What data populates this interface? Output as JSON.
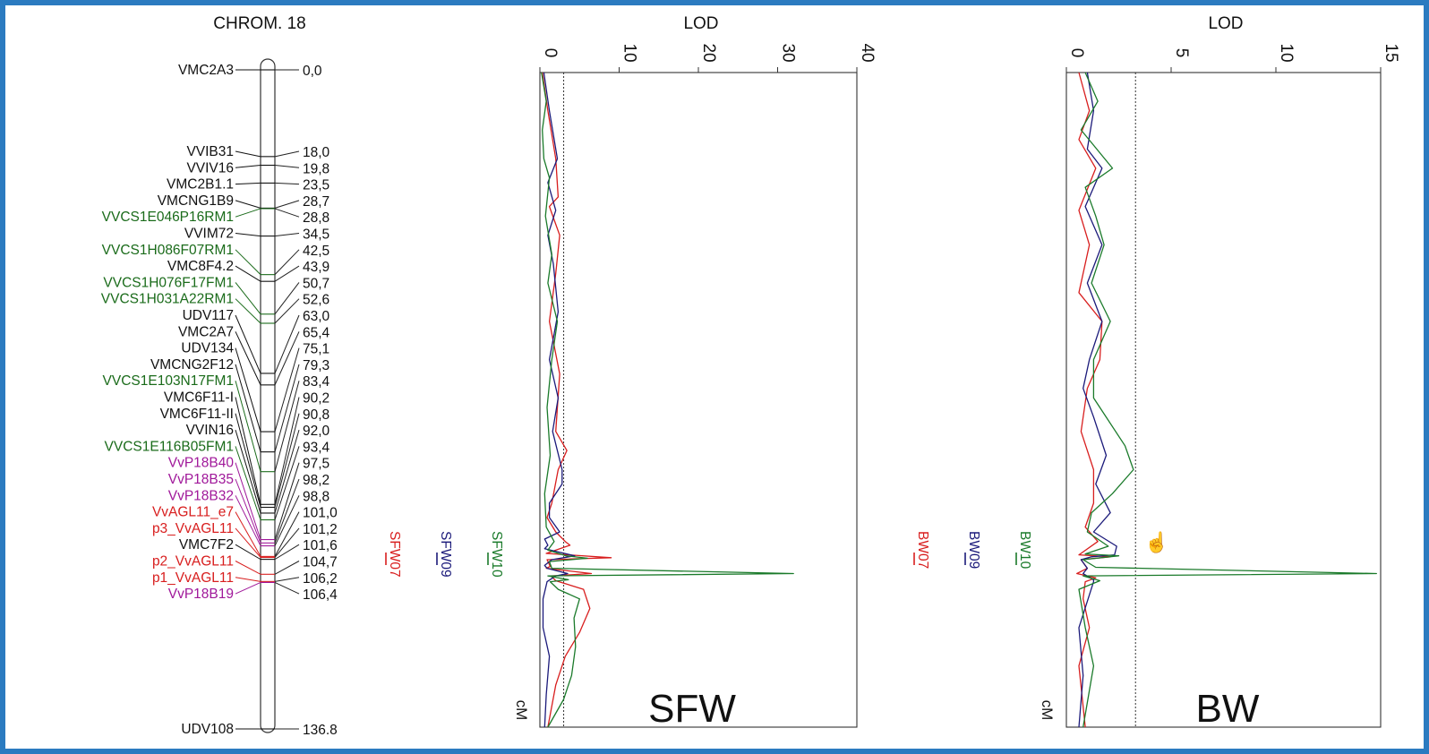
{
  "chart_data": [
    {
      "type": "diagram",
      "title": "CHROM. 18",
      "markers": [
        {
          "name": "VMC2A3",
          "cm": "0,0",
          "color": "#111111"
        },
        {
          "name": "VVIB31",
          "cm": "18,0",
          "color": "#111111"
        },
        {
          "name": "VVIV16",
          "cm": "19,8",
          "color": "#111111"
        },
        {
          "name": "VMC2B1.1",
          "cm": "23,5",
          "color": "#111111"
        },
        {
          "name": "VMCNG1B9",
          "cm": "28,7",
          "color": "#111111"
        },
        {
          "name": "VVCS1E046P16RM1",
          "cm": "28,8",
          "color": "#1a6b1a"
        },
        {
          "name": "VVIM72",
          "cm": "34,5",
          "color": "#111111"
        },
        {
          "name": "VVCS1H086F07RM1",
          "cm": "42,5",
          "color": "#1a6b1a"
        },
        {
          "name": "VMC8F4.2",
          "cm": "43,9",
          "color": "#111111"
        },
        {
          "name": "VVCS1H076F17FM1",
          "cm": "50,7",
          "color": "#1a6b1a"
        },
        {
          "name": "VVCS1H031A22RM1",
          "cm": "52,6",
          "color": "#1a6b1a"
        },
        {
          "name": "UDV117",
          "cm": "63,0",
          "color": "#111111"
        },
        {
          "name": "VMC2A7",
          "cm": "65,4",
          "color": "#111111"
        },
        {
          "name": "UDV134",
          "cm": "75,1",
          "color": "#111111"
        },
        {
          "name": "VMCNG2F12",
          "cm": "79,3",
          "color": "#111111"
        },
        {
          "name": "VVCS1E103N17FM1",
          "cm": "83,4",
          "color": "#1a6b1a"
        },
        {
          "name": "VMC6F11-I",
          "cm": "90,2",
          "color": "#111111"
        },
        {
          "name": "VMC6F11-II",
          "cm": "90,8",
          "color": "#111111"
        },
        {
          "name": "VVIN16",
          "cm": "92,0",
          "color": "#111111"
        },
        {
          "name": "VVCS1E116B05FM1",
          "cm": "93,4",
          "color": "#1a6b1a"
        },
        {
          "name": "VvP18B40",
          "cm": "97,5",
          "color": "#a0189a"
        },
        {
          "name": "VvP18B35",
          "cm": "98,2",
          "color": "#a0189a"
        },
        {
          "name": "VvP18B32",
          "cm": "98,8",
          "color": "#a0189a"
        },
        {
          "name": "VvAGL11_e7",
          "cm": "101,0",
          "color": "#d81e1e"
        },
        {
          "name": "p3_VvAGL11",
          "cm": "101,2",
          "color": "#d81e1e"
        },
        {
          "name": "VMC7F2",
          "cm": "101,6",
          "color": "#111111"
        },
        {
          "name": "p2_VvAGL11",
          "cm": "104,7",
          "color": "#d81e1e"
        },
        {
          "name": "p1_VvAGL11",
          "cm": "106,2",
          "color": "#d81e1e"
        },
        {
          "name": "VvP18B19",
          "cm": "106,4",
          "color": "#a0189a"
        },
        {
          "name": "UDV108",
          "cm": "136.8",
          "color": "#111111"
        }
      ]
    },
    {
      "type": "line",
      "title": "SFW",
      "xlabel": "LOD",
      "ylabel": "cM",
      "xlim": [
        0,
        40
      ],
      "xticks": [
        "0",
        "10",
        "20",
        "30",
        "40"
      ],
      "ylim": [
        0,
        136.8
      ],
      "threshold": 3,
      "qtl_labels": [
        {
          "name": "SFW07",
          "color": "#d81e1e"
        },
        {
          "name": "SFW09",
          "color": "#1b1a7a"
        },
        {
          "name": "SFW10",
          "color": "#1a7a2a"
        }
      ],
      "series": [
        {
          "name": "SFW07",
          "color": "#d81e1e",
          "points": [
            [
              0.3,
              0
            ],
            [
              1,
              8
            ],
            [
              2,
              18
            ],
            [
              2.3,
              26
            ],
            [
              1.2,
              28
            ],
            [
              2.5,
              34
            ],
            [
              2,
              42
            ],
            [
              1.2,
              52
            ],
            [
              2.5,
              63
            ],
            [
              2,
              75
            ],
            [
              3.4,
              79
            ],
            [
              2.3,
              83
            ],
            [
              1.5,
              90
            ],
            [
              0.9,
              93
            ],
            [
              2,
              96
            ],
            [
              3.2,
              98
            ],
            [
              3.8,
              98.8
            ],
            [
              0.8,
              100.5
            ],
            [
              9,
              101.4
            ],
            [
              0.9,
              101.8
            ],
            [
              1.3,
              103.2
            ],
            [
              0.8,
              103.6
            ],
            [
              6.5,
              104.7
            ],
            [
              1.4,
              105.2
            ],
            [
              2,
              106.2
            ],
            [
              5.5,
              108
            ],
            [
              6.3,
              112
            ],
            [
              5,
              117
            ],
            [
              3.2,
              122
            ],
            [
              2,
              128
            ],
            [
              1,
              136.8
            ]
          ]
        },
        {
          "name": "SFW09",
          "color": "#1b1a7a",
          "points": [
            [
              0.5,
              0
            ],
            [
              1.2,
              8
            ],
            [
              2.2,
              18
            ],
            [
              1,
              23
            ],
            [
              2,
              28.8
            ],
            [
              1,
              34
            ],
            [
              1.7,
              40
            ],
            [
              2.3,
              50
            ],
            [
              1.2,
              60
            ],
            [
              2.3,
              68
            ],
            [
              1.6,
              75
            ],
            [
              2.8,
              83
            ],
            [
              2.8,
              86
            ],
            [
              1.2,
              90
            ],
            [
              1.2,
              93
            ],
            [
              2.5,
              96
            ],
            [
              0.6,
              97.5
            ],
            [
              1,
              98.8
            ],
            [
              0.6,
              99.5
            ],
            [
              4.4,
              101
            ],
            [
              1.5,
              101.8
            ],
            [
              0.6,
              103
            ],
            [
              0.9,
              103.6
            ],
            [
              3.5,
              104.7
            ],
            [
              2,
              105.2
            ],
            [
              0.9,
              106.4
            ],
            [
              0.4,
              110
            ],
            [
              0.4,
              116
            ],
            [
              1.2,
              122
            ],
            [
              0.8,
              130
            ],
            [
              0.6,
              136.8
            ]
          ]
        },
        {
          "name": "SFW10",
          "color": "#1a7a2a",
          "points": [
            [
              0.2,
              0
            ],
            [
              0.8,
              6
            ],
            [
              0.3,
              12
            ],
            [
              0.5,
              18
            ],
            [
              1.2,
              22
            ],
            [
              0.7,
              30
            ],
            [
              1.5,
              38
            ],
            [
              1,
              44
            ],
            [
              2.2,
              52
            ],
            [
              1.5,
              60
            ],
            [
              0.9,
              70
            ],
            [
              1.3,
              80
            ],
            [
              0.6,
              88
            ],
            [
              0.8,
              95
            ],
            [
              1.8,
              98
            ],
            [
              1,
              99.8
            ],
            [
              3.3,
              101
            ],
            [
              6,
              101.5
            ],
            [
              1.2,
              102.2
            ],
            [
              1.5,
              103.6
            ],
            [
              32,
              104.7
            ],
            [
              1,
              105.2
            ],
            [
              3.6,
              106
            ],
            [
              1.3,
              106.4
            ],
            [
              2.3,
              108
            ],
            [
              5,
              110
            ],
            [
              4.3,
              114
            ],
            [
              4.5,
              120
            ],
            [
              4,
              126
            ],
            [
              3,
              131
            ],
            [
              1,
              136.8
            ]
          ]
        }
      ]
    },
    {
      "type": "line",
      "title": "BW",
      "xlabel": "LOD",
      "ylabel": "cM",
      "xlim": [
        0,
        15
      ],
      "xticks": [
        "0",
        "5",
        "10",
        "15"
      ],
      "ylim": [
        0,
        136.8
      ],
      "threshold": 3.3,
      "qtl_labels": [
        {
          "name": "BW07",
          "color": "#d81e1e"
        },
        {
          "name": "BW09",
          "color": "#1b1a7a"
        },
        {
          "name": "BW10",
          "color": "#1a7a2a"
        }
      ],
      "series": [
        {
          "name": "BW07",
          "color": "#d81e1e",
          "points": [
            [
              0.6,
              0
            ],
            [
              1.1,
              8
            ],
            [
              0.6,
              14
            ],
            [
              1.4,
              20
            ],
            [
              0.6,
              28.8
            ],
            [
              1.1,
              36
            ],
            [
              0.6,
              46
            ],
            [
              1.7,
              52
            ],
            [
              1.6,
              60
            ],
            [
              1,
              66
            ],
            [
              0.7,
              75
            ],
            [
              1.3,
              83
            ],
            [
              1.3,
              90
            ],
            [
              0.9,
              95
            ],
            [
              1.5,
              98
            ],
            [
              0.6,
              100.8
            ],
            [
              2.1,
              101.2
            ],
            [
              0.7,
              101.8
            ],
            [
              1,
              103.6
            ],
            [
              0.5,
              104.7
            ],
            [
              1.4,
              105.6
            ],
            [
              0.9,
              106.4
            ],
            [
              0.8,
              110
            ],
            [
              1.1,
              116
            ],
            [
              0.6,
              124
            ],
            [
              0.9,
              136.8
            ]
          ]
        },
        {
          "name": "BW09",
          "color": "#1b1a7a",
          "points": [
            [
              1,
              0
            ],
            [
              1.3,
              8
            ],
            [
              1,
              16
            ],
            [
              1.7,
              20
            ],
            [
              0.9,
              28
            ],
            [
              1.7,
              36
            ],
            [
              1,
              44
            ],
            [
              1.7,
              52
            ],
            [
              1.1,
              60
            ],
            [
              0.8,
              66
            ],
            [
              1.3,
              72
            ],
            [
              1.9,
              80
            ],
            [
              1.4,
              86
            ],
            [
              2.1,
              92
            ],
            [
              1.3,
              96
            ],
            [
              2.4,
              99
            ],
            [
              2.3,
              100.8
            ],
            [
              1.2,
              101.2
            ],
            [
              0.7,
              101.8
            ],
            [
              1,
              103.6
            ],
            [
              0.8,
              104.7
            ],
            [
              1.3,
              106
            ],
            [
              1.3,
              106.4
            ],
            [
              0.6,
              116
            ],
            [
              0.8,
              126
            ],
            [
              0.6,
              136.8
            ]
          ]
        },
        {
          "name": "BW10",
          "color": "#1a7a2a",
          "points": [
            [
              0.9,
              0
            ],
            [
              1.5,
              6
            ],
            [
              0.7,
              12
            ],
            [
              2.2,
              20
            ],
            [
              0.9,
              24
            ],
            [
              1.4,
              30
            ],
            [
              1.8,
              36
            ],
            [
              1.2,
              44
            ],
            [
              2.1,
              52
            ],
            [
              1.3,
              60
            ],
            [
              1.3,
              68
            ],
            [
              2.8,
              78
            ],
            [
              3.2,
              83
            ],
            [
              2.2,
              88
            ],
            [
              1.2,
              92
            ],
            [
              1,
              96
            ],
            [
              2,
              99
            ],
            [
              0.9,
              100.6
            ],
            [
              2.5,
              101
            ],
            [
              0.8,
              101.8
            ],
            [
              1.4,
              103.4
            ],
            [
              14.8,
              104.7
            ],
            [
              0.8,
              105.2
            ],
            [
              1.6,
              106.2
            ],
            [
              0.6,
              108
            ],
            [
              0.9,
              116
            ],
            [
              1.3,
              124
            ],
            [
              0.8,
              136.8
            ]
          ]
        }
      ]
    }
  ]
}
